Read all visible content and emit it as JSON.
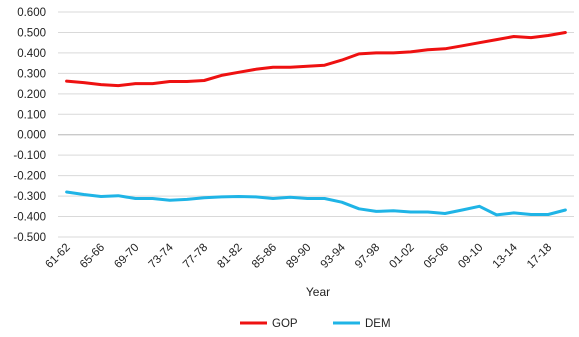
{
  "chart_data": {
    "type": "line",
    "title": "",
    "xlabel": "Year",
    "ylabel": "",
    "ylim": [
      -0.5,
      0.6
    ],
    "yticks": [
      "0.600",
      "0.500",
      "0.400",
      "0.300",
      "0.200",
      "0.100",
      "0.000",
      "-0.100",
      "-0.200",
      "-0.300",
      "-0.400",
      "-0.500"
    ],
    "x": [
      "61-62",
      "63-64",
      "65-66",
      "67-68",
      "69-70",
      "71-72",
      "73-74",
      "75-76",
      "77-78",
      "79-80",
      "81-82",
      "83-84",
      "85-86",
      "87-88",
      "89-90",
      "91-92",
      "93-94",
      "95-96",
      "97-98",
      "99-00",
      "01-02",
      "03-04",
      "05-06",
      "07-08",
      "09-10",
      "11-12",
      "13-14",
      "15-16",
      "17-18",
      "19-20"
    ],
    "xtick_labels": [
      "61-62",
      "",
      "65-66",
      "",
      "69-70",
      "",
      "73-74",
      "",
      "77-78",
      "",
      "81-82",
      "",
      "85-86",
      "",
      "89-90",
      "",
      "93-94",
      "",
      "97-98",
      "",
      "01-02",
      "",
      "05-06",
      "",
      "09-10",
      "",
      "13-14",
      "",
      "17-18",
      ""
    ],
    "grid": true,
    "legend_position": "bottom",
    "series": [
      {
        "name": "GOP",
        "color": "#ee1111",
        "values": [
          0.262,
          0.255,
          0.245,
          0.24,
          0.25,
          0.25,
          0.26,
          0.26,
          0.265,
          0.29,
          0.305,
          0.32,
          0.33,
          0.33,
          0.335,
          0.34,
          0.365,
          0.395,
          0.4,
          0.4,
          0.405,
          0.415,
          0.42,
          0.435,
          0.45,
          0.465,
          0.48,
          0.475,
          0.485,
          0.5
        ]
      },
      {
        "name": "DEM",
        "color": "#1fb4e6",
        "values": [
          -0.28,
          -0.292,
          -0.302,
          -0.298,
          -0.312,
          -0.312,
          -0.32,
          -0.316,
          -0.308,
          -0.304,
          -0.302,
          -0.304,
          -0.312,
          -0.306,
          -0.312,
          -0.312,
          -0.33,
          -0.362,
          -0.375,
          -0.372,
          -0.378,
          -0.378,
          -0.385,
          -0.368,
          -0.35,
          -0.392,
          -0.382,
          -0.39,
          -0.39,
          -0.368
        ]
      }
    ]
  }
}
